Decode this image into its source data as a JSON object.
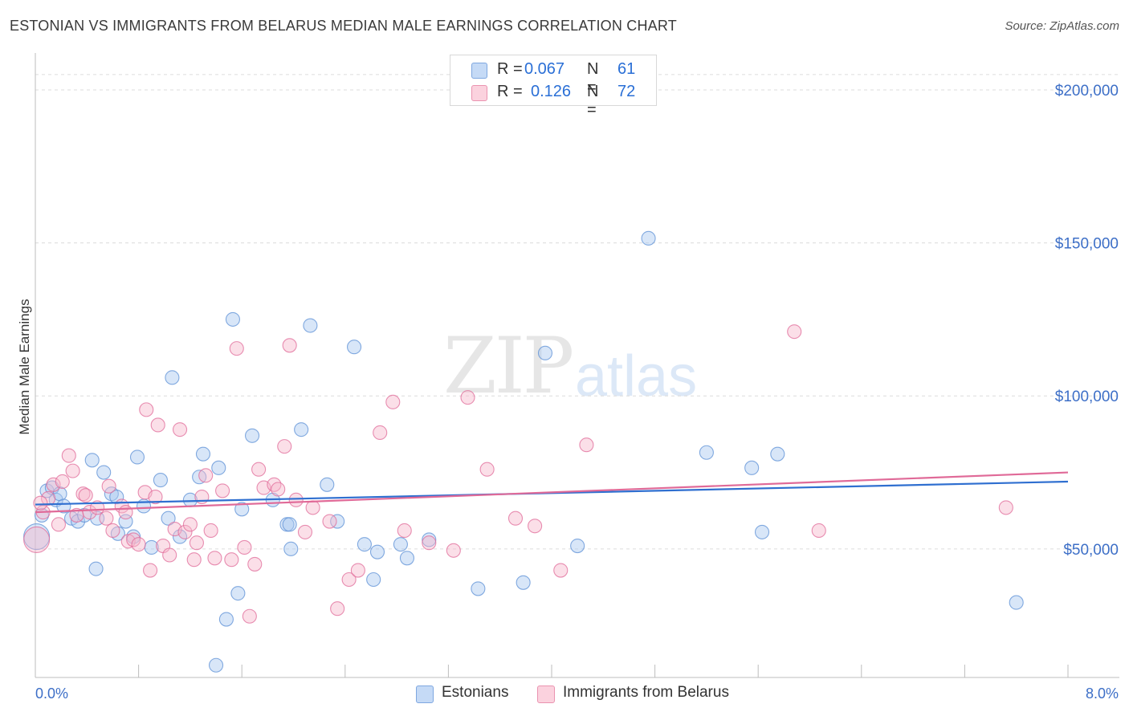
{
  "header": {
    "title": "ESTONIAN VS IMMIGRANTS FROM BELARUS MEDIAN MALE EARNINGS CORRELATION CHART",
    "source": "Source: ZipAtlas.com"
  },
  "watermark": {
    "zip": "ZIP",
    "atlas": "atlas"
  },
  "legend": {
    "rows": [
      {
        "r_label": "R =",
        "r_value": "0.067",
        "n_label": "N =",
        "n_value": "61",
        "color": "#a8c8f0"
      },
      {
        "r_label": "R =",
        "r_value": "0.126",
        "n_label": "N =",
        "n_value": "72",
        "color": "#f7b8cc"
      }
    ]
  },
  "bottom_legend": [
    {
      "label": "Estonians",
      "color": "#a8c8f0"
    },
    {
      "label": "Immigrants from Belarus",
      "color": "#f7b8cc"
    }
  ],
  "chart_data": {
    "type": "scatter",
    "title": "ESTONIAN VS IMMIGRANTS FROM BELARUS MEDIAN MALE EARNINGS CORRELATION CHART",
    "xlabel": "",
    "ylabel": "Median Male Earnings",
    "xlim": [
      0,
      8
    ],
    "ylim": [
      8000,
      211000
    ],
    "x_tick_labels": [
      "0.0%",
      "8.0%"
    ],
    "y_ticks": [
      50000,
      100000,
      150000,
      200000
    ],
    "y_tick_labels": [
      "$50,000",
      "$100,000",
      "$150,000",
      "$200,000"
    ],
    "grid": true,
    "legend_position": "top-center",
    "series": [
      {
        "name": "Estonians",
        "color": "#5b8fd6",
        "fill": "#a8c8f0",
        "trend": [
          [
            0.0,
            64500
          ],
          [
            8.0,
            72000
          ]
        ],
        "points": [
          [
            0.01,
            54000
          ],
          [
            0.05,
            61000
          ],
          [
            0.09,
            69000
          ],
          [
            0.13,
            70000
          ],
          [
            0.16,
            66000
          ],
          [
            0.19,
            68000
          ],
          [
            0.22,
            64000
          ],
          [
            0.28,
            60000
          ],
          [
            0.33,
            59000
          ],
          [
            0.38,
            61000
          ],
          [
            0.44,
            79000
          ],
          [
            0.47,
            43500
          ],
          [
            0.53,
            75000
          ],
          [
            0.59,
            68000
          ],
          [
            0.64,
            55000
          ],
          [
            0.7,
            59000
          ],
          [
            0.76,
            54000
          ],
          [
            0.79,
            80000
          ],
          [
            0.84,
            64000
          ],
          [
            0.9,
            50500
          ],
          [
            0.97,
            72500
          ],
          [
            1.03,
            60000
          ],
          [
            1.06,
            106000
          ],
          [
            1.12,
            54000
          ],
          [
            1.2,
            66000
          ],
          [
            1.27,
            73500
          ],
          [
            1.3,
            81000
          ],
          [
            1.4,
            12000
          ],
          [
            1.42,
            76500
          ],
          [
            1.48,
            27000
          ],
          [
            1.53,
            125000
          ],
          [
            1.57,
            35500
          ],
          [
            1.6,
            63000
          ],
          [
            1.68,
            87000
          ],
          [
            1.84,
            66000
          ],
          [
            1.95,
            58000
          ],
          [
            1.98,
            50000
          ],
          [
            2.06,
            89000
          ],
          [
            2.13,
            123000
          ],
          [
            2.26,
            71000
          ],
          [
            2.34,
            59000
          ],
          [
            2.47,
            116000
          ],
          [
            2.55,
            51500
          ],
          [
            2.62,
            40000
          ],
          [
            2.65,
            49000
          ],
          [
            2.83,
            51500
          ],
          [
            2.88,
            47000
          ],
          [
            3.05,
            53000
          ],
          [
            3.43,
            37000
          ],
          [
            3.78,
            39000
          ],
          [
            3.95,
            114000
          ],
          [
            4.2,
            51000
          ],
          [
            4.75,
            151500
          ],
          [
            5.2,
            81500
          ],
          [
            5.55,
            76500
          ],
          [
            5.63,
            55500
          ],
          [
            5.75,
            81000
          ],
          [
            7.6,
            32500
          ],
          [
            0.48,
            60000
          ],
          [
            0.63,
            67000
          ],
          [
            1.97,
            58000
          ]
        ]
      },
      {
        "name": "Immigrants from Belarus",
        "color": "#e06a98",
        "fill": "#f7b8cc",
        "trend": [
          [
            0.0,
            62000
          ],
          [
            8.0,
            75000
          ]
        ],
        "points": [
          [
            0.01,
            53000
          ],
          [
            0.06,
            62000
          ],
          [
            0.1,
            66500
          ],
          [
            0.14,
            71000
          ],
          [
            0.18,
            58000
          ],
          [
            0.21,
            72000
          ],
          [
            0.26,
            80500
          ],
          [
            0.29,
            75500
          ],
          [
            0.32,
            61000
          ],
          [
            0.37,
            68000
          ],
          [
            0.39,
            67500
          ],
          [
            0.42,
            62000
          ],
          [
            0.48,
            63500
          ],
          [
            0.55,
            60000
          ],
          [
            0.57,
            70500
          ],
          [
            0.6,
            56000
          ],
          [
            0.67,
            64000
          ],
          [
            0.7,
            62000
          ],
          [
            0.72,
            52500
          ],
          [
            0.76,
            53000
          ],
          [
            0.8,
            51500
          ],
          [
            0.85,
            68500
          ],
          [
            0.86,
            95500
          ],
          [
            0.89,
            43000
          ],
          [
            0.93,
            67000
          ],
          [
            0.95,
            90500
          ],
          [
            0.99,
            51000
          ],
          [
            1.04,
            48000
          ],
          [
            1.08,
            56500
          ],
          [
            1.12,
            89000
          ],
          [
            1.16,
            55500
          ],
          [
            1.2,
            58000
          ],
          [
            1.23,
            46500
          ],
          [
            1.25,
            52000
          ],
          [
            1.29,
            67000
          ],
          [
            1.32,
            74000
          ],
          [
            1.36,
            56000
          ],
          [
            1.39,
            47000
          ],
          [
            1.45,
            69000
          ],
          [
            1.52,
            46500
          ],
          [
            1.56,
            115500
          ],
          [
            1.62,
            50500
          ],
          [
            1.66,
            28000
          ],
          [
            1.7,
            45000
          ],
          [
            1.73,
            76000
          ],
          [
            1.77,
            70000
          ],
          [
            1.85,
            71000
          ],
          [
            1.88,
            69500
          ],
          [
            1.93,
            83500
          ],
          [
            1.97,
            116500
          ],
          [
            2.02,
            66000
          ],
          [
            2.09,
            55500
          ],
          [
            2.15,
            63500
          ],
          [
            2.28,
            59000
          ],
          [
            2.34,
            30500
          ],
          [
            2.43,
            40000
          ],
          [
            2.5,
            43000
          ],
          [
            2.67,
            88000
          ],
          [
            2.77,
            98000
          ],
          [
            2.86,
            56000
          ],
          [
            3.05,
            52000
          ],
          [
            3.24,
            49500
          ],
          [
            3.35,
            99500
          ],
          [
            3.5,
            76000
          ],
          [
            3.72,
            60000
          ],
          [
            3.87,
            57500
          ],
          [
            4.07,
            43000
          ],
          [
            4.27,
            84000
          ],
          [
            5.88,
            121000
          ],
          [
            6.07,
            56000
          ],
          [
            7.52,
            63500
          ],
          [
            0.04,
            65000
          ]
        ]
      }
    ]
  }
}
